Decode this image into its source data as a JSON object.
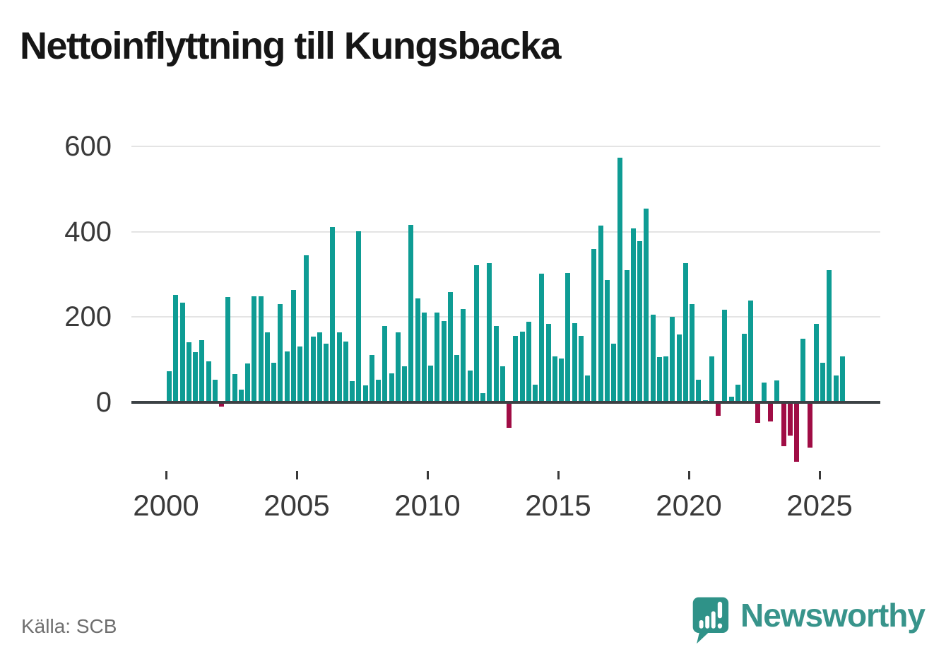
{
  "title": "Nettoinflyttning till Kungsbacka",
  "source": "Källa: SCB",
  "branding": {
    "logo_text": "Newsworthy",
    "logo_icon": "bar-chart-speech-bubble-icon",
    "logo_color": "#38948b"
  },
  "colors": {
    "positive_bar": "#0e9c94",
    "negative_bar": "#a00d45",
    "gridline": "#e4e4e4",
    "zero_axis": "#3c4245",
    "axis_text": "#3a3a3a",
    "title_text": "#161616",
    "source_text": "#6f6f6f"
  },
  "chart_data": {
    "type": "bar",
    "title": "Nettoinflyttning till Kungsbacka",
    "frequency": "quarterly",
    "first_period": "2000 Q1",
    "last_period": "2025 Q4",
    "xlabel": "",
    "ylabel": "",
    "yticks": [
      0,
      200,
      400,
      600
    ],
    "xticks": [
      2000,
      2005,
      2010,
      2015,
      2020,
      2025
    ],
    "ylim": [
      -160,
      630
    ],
    "grid": "horizontal",
    "legend": "none",
    "series_by_year": [
      {
        "year": 2000,
        "q": [
          72,
          251,
          234,
          141
        ]
      },
      {
        "year": 2001,
        "q": [
          117,
          145,
          95,
          52
        ]
      },
      {
        "year": 2002,
        "q": [
          -11,
          246,
          66,
          29
        ]
      },
      {
        "year": 2003,
        "q": [
          90,
          248,
          248,
          164
        ]
      },
      {
        "year": 2004,
        "q": [
          93,
          230,
          118,
          263
        ]
      },
      {
        "year": 2005,
        "q": [
          130,
          345,
          153,
          163
        ]
      },
      {
        "year": 2006,
        "q": [
          137,
          411,
          163,
          142
        ]
      },
      {
        "year": 2007,
        "q": [
          49,
          402,
          39,
          111
        ]
      },
      {
        "year": 2008,
        "q": [
          53,
          178,
          67,
          163
        ]
      },
      {
        "year": 2009,
        "q": [
          84,
          417,
          244,
          211
        ]
      },
      {
        "year": 2010,
        "q": [
          85,
          210,
          190,
          259
        ]
      },
      {
        "year": 2011,
        "q": [
          111,
          219,
          74,
          322
        ]
      },
      {
        "year": 2012,
        "q": [
          20,
          326,
          179,
          84
        ]
      },
      {
        "year": 2013,
        "q": [
          -60,
          156,
          165,
          189
        ]
      },
      {
        "year": 2014,
        "q": [
          41,
          302,
          183,
          107
        ]
      },
      {
        "year": 2015,
        "q": [
          102,
          303,
          185,
          155
        ]
      },
      {
        "year": 2016,
        "q": [
          62,
          360,
          415,
          286
        ]
      },
      {
        "year": 2017,
        "q": [
          137,
          575,
          310,
          408
        ]
      },
      {
        "year": 2018,
        "q": [
          378,
          455,
          206,
          106
        ]
      },
      {
        "year": 2019,
        "q": [
          108,
          200,
          158,
          327
        ]
      },
      {
        "year": 2020,
        "q": [
          231,
          53,
          4,
          108
        ]
      },
      {
        "year": 2021,
        "q": [
          -32,
          217,
          12,
          41
        ]
      },
      {
        "year": 2022,
        "q": [
          161,
          238,
          -49,
          46
        ]
      },
      {
        "year": 2023,
        "q": [
          -46,
          50,
          -104,
          -79
        ]
      },
      {
        "year": 2024,
        "q": [
          -140,
          149,
          -107,
          184
        ]
      },
      {
        "year": 2025,
        "q": [
          93,
          310,
          62,
          108
        ]
      }
    ]
  }
}
